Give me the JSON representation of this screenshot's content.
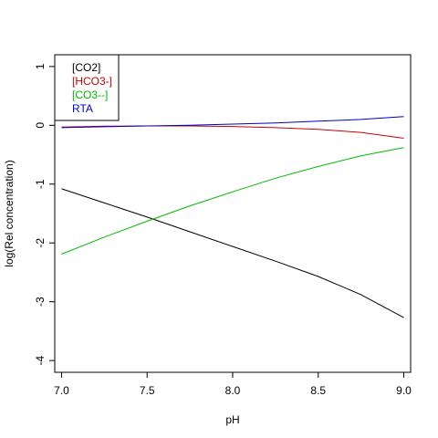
{
  "chart_data": {
    "type": "line",
    "title": "",
    "xlabel": "pH",
    "ylabel": "log(Rel concentration)",
    "xlim": [
      6.96,
      9.04
    ],
    "ylim": [
      -4.2,
      1.2
    ],
    "xticks": [
      7.0,
      7.5,
      8.0,
      8.5,
      9.0
    ],
    "xtick_labels": [
      "7.0",
      "7.5",
      "8.0",
      "8.5",
      "9.0"
    ],
    "yticks": [
      -4,
      -3,
      -2,
      -1,
      0,
      1
    ],
    "ytick_labels": [
      "-4",
      "-3",
      "-2",
      "-1",
      "0",
      "1"
    ],
    "grid": false,
    "legend_position": "top-left",
    "x": [
      7.0,
      7.25,
      7.5,
      7.75,
      8.0,
      8.25,
      8.5,
      8.75,
      9.0
    ],
    "series": [
      {
        "name": "[CO2]",
        "color": "#000000",
        "values": [
          -1.08,
          -1.32,
          -1.56,
          -1.81,
          -2.06,
          -2.31,
          -2.57,
          -2.88,
          -3.27
        ]
      },
      {
        "name": "[HCO3-]",
        "color": "#cc0000",
        "values": [
          -0.03,
          -0.015,
          -0.01,
          -0.01,
          -0.02,
          -0.04,
          -0.07,
          -0.12,
          -0.22
        ]
      },
      {
        "name": "[CO3--]",
        "color": "#00bb00",
        "values": [
          -2.19,
          -1.9,
          -1.63,
          -1.37,
          -1.13,
          -0.9,
          -0.7,
          -0.52,
          -0.38
        ]
      },
      {
        "name": "RTA",
        "color": "#0000cc",
        "values": [
          -0.04,
          -0.025,
          -0.01,
          0.0,
          0.02,
          0.04,
          0.07,
          0.1,
          0.15
        ]
      }
    ]
  }
}
